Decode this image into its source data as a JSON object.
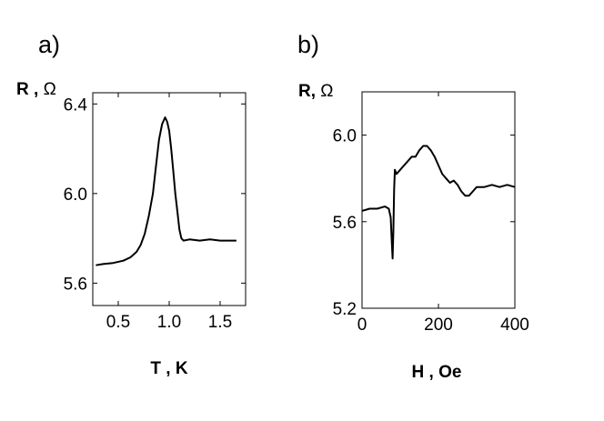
{
  "chart_data": [
    {
      "panel_label": "a)",
      "type": "line",
      "xlabel": "T , K",
      "ylabel_bold": "R , ",
      "ylabel_unit": "Ω",
      "xlim": [
        0.25,
        1.75
      ],
      "ylim": [
        5.5,
        6.45
      ],
      "xticks": [
        0.5,
        1.0,
        1.5
      ],
      "xtick_labels": [
        "0.5",
        "1.0",
        "1.5"
      ],
      "yticks": [
        5.6,
        6.0,
        6.4
      ],
      "ytick_labels": [
        "5.6",
        "6.0",
        "6.4"
      ],
      "grid": false,
      "series": [
        {
          "x": [
            0.28,
            0.35,
            0.45,
            0.55,
            0.62,
            0.68,
            0.72,
            0.76,
            0.8,
            0.84,
            0.87,
            0.9,
            0.93,
            0.96,
            0.98,
            1.0,
            1.02,
            1.04,
            1.06,
            1.08,
            1.1,
            1.12,
            1.14,
            1.2,
            1.3,
            1.4,
            1.5,
            1.6,
            1.66
          ],
          "y": [
            5.68,
            5.685,
            5.69,
            5.7,
            5.715,
            5.74,
            5.77,
            5.82,
            5.9,
            6.0,
            6.12,
            6.24,
            6.31,
            6.34,
            6.32,
            6.28,
            6.2,
            6.1,
            6.0,
            5.92,
            5.84,
            5.8,
            5.79,
            5.795,
            5.79,
            5.795,
            5.79,
            5.79,
            5.79
          ]
        }
      ]
    },
    {
      "panel_label": "b)",
      "type": "line",
      "xlabel": "H , Oe",
      "ylabel_bold": "R, ",
      "ylabel_unit": "Ω",
      "xlim": [
        0,
        400
      ],
      "ylim": [
        5.2,
        6.2
      ],
      "xticks": [
        0,
        200,
        400
      ],
      "xtick_labels": [
        "0",
        "200",
        "400"
      ],
      "yticks": [
        5.2,
        5.6,
        6.0
      ],
      "ytick_labels": [
        "5.2",
        "5.6",
        "6.0"
      ],
      "grid": false,
      "series": [
        {
          "x": [
            0,
            20,
            40,
            60,
            70,
            75,
            78,
            80,
            82,
            84,
            86,
            90,
            100,
            110,
            120,
            130,
            140,
            150,
            160,
            170,
            180,
            190,
            200,
            210,
            220,
            230,
            240,
            250,
            260,
            270,
            280,
            290,
            300,
            320,
            340,
            360,
            380,
            400
          ],
          "y": [
            5.65,
            5.66,
            5.66,
            5.67,
            5.66,
            5.62,
            5.5,
            5.43,
            5.55,
            5.75,
            5.84,
            5.82,
            5.84,
            5.86,
            5.88,
            5.9,
            5.9,
            5.93,
            5.95,
            5.95,
            5.93,
            5.9,
            5.86,
            5.82,
            5.8,
            5.78,
            5.79,
            5.77,
            5.74,
            5.72,
            5.72,
            5.74,
            5.76,
            5.76,
            5.77,
            5.76,
            5.77,
            5.76
          ]
        }
      ]
    }
  ]
}
